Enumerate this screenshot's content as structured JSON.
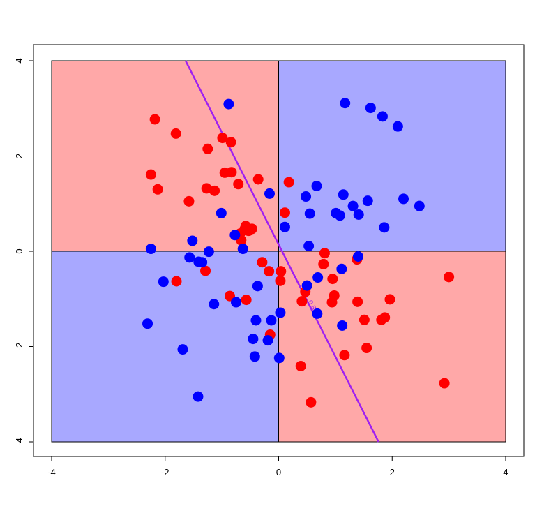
{
  "chart_data": {
    "type": "scatter",
    "title": "",
    "xlabel": "",
    "ylabel": "",
    "xlim": [
      -4,
      4
    ],
    "ylim": [
      -4,
      4
    ],
    "x_ticks": [
      -4,
      -2,
      0,
      2,
      4
    ],
    "y_ticks": [
      -4,
      -2,
      0,
      2,
      4
    ],
    "x_tick_labels": [
      "-4",
      "-2",
      "0",
      "2",
      "4"
    ],
    "y_tick_labels": [
      "-4",
      "-2",
      "0",
      "2",
      "4"
    ],
    "grid": false,
    "legend": "none",
    "background_regions": [
      {
        "x": [
          -4,
          0
        ],
        "y": [
          0,
          4
        ],
        "color": "#ffa8a8"
      },
      {
        "x": [
          0,
          4
        ],
        "y": [
          0,
          4
        ],
        "color": "#a8a8ff"
      },
      {
        "x": [
          -4,
          0
        ],
        "y": [
          -4,
          0
        ],
        "color": "#a8a8ff"
      },
      {
        "x": [
          0,
          4
        ],
        "y": [
          -4,
          0
        ],
        "color": "#ffa8a8"
      }
    ],
    "region_border_color": "#000000",
    "boundary_line": {
      "label": "0.5",
      "color": "#a020f0",
      "points": [
        [
          -1.64,
          4.0
        ],
        [
          1.76,
          -4.0
        ]
      ],
      "label_at": [
        0.55,
        -1.15
      ]
    },
    "series": [
      {
        "color": "#ff0000",
        "points": [
          [
            -2.18,
            2.77
          ],
          [
            -1.81,
            2.47
          ],
          [
            -1.25,
            2.15
          ],
          [
            -0.99,
            2.38
          ],
          [
            -0.84,
            2.29
          ],
          [
            -2.25,
            1.61
          ],
          [
            -2.13,
            1.3
          ],
          [
            -1.58,
            1.05
          ],
          [
            -1.27,
            1.32
          ],
          [
            -1.13,
            1.27
          ],
          [
            -0.95,
            1.65
          ],
          [
            -0.83,
            1.66
          ],
          [
            -0.71,
            1.41
          ],
          [
            -0.36,
            1.51
          ],
          [
            0.11,
            0.81
          ],
          [
            0.18,
            1.45
          ],
          [
            -0.58,
            0.53
          ],
          [
            -0.47,
            0.47
          ],
          [
            -0.6,
            0.46
          ],
          [
            -0.68,
            0.37
          ],
          [
            -0.66,
            0.23
          ],
          [
            -1.8,
            -0.63
          ],
          [
            -1.29,
            -0.41
          ],
          [
            -0.86,
            -0.94
          ],
          [
            -0.57,
            -1.02
          ],
          [
            -0.29,
            -0.23
          ],
          [
            -0.17,
            -0.42
          ],
          [
            0.04,
            -0.42
          ],
          [
            0.03,
            -0.62
          ],
          [
            -0.53,
            0.43
          ],
          [
            0.41,
            -1.05
          ],
          [
            0.47,
            -0.85
          ],
          [
            0.81,
            -0.04
          ],
          [
            0.79,
            -0.27
          ],
          [
            0.95,
            -0.58
          ],
          [
            0.98,
            -0.93
          ],
          [
            0.94,
            -1.07
          ],
          [
            1.38,
            -0.17
          ],
          [
            1.39,
            -1.06
          ],
          [
            1.51,
            -1.44
          ],
          [
            1.81,
            -1.44
          ],
          [
            1.87,
            -1.39
          ],
          [
            1.96,
            -1.01
          ],
          [
            1.55,
            -2.03
          ],
          [
            1.16,
            -2.18
          ],
          [
            0.39,
            -2.41
          ],
          [
            0.57,
            -3.17
          ],
          [
            -0.15,
            -1.75
          ],
          [
            2.92,
            -2.77
          ],
          [
            3.0,
            -0.54
          ]
        ]
      },
      {
        "color": "#0000ff",
        "points": [
          [
            -0.88,
            3.09
          ],
          [
            1.17,
            3.11
          ],
          [
            1.62,
            3.01
          ],
          [
            1.83,
            2.83
          ],
          [
            2.1,
            2.62
          ],
          [
            -0.16,
            1.21
          ],
          [
            0.67,
            1.37
          ],
          [
            0.48,
            1.15
          ],
          [
            1.14,
            1.19
          ],
          [
            1.31,
            0.95
          ],
          [
            1.57,
            1.06
          ],
          [
            2.2,
            1.1
          ],
          [
            2.48,
            0.95
          ],
          [
            1.01,
            0.8
          ],
          [
            1.08,
            0.75
          ],
          [
            1.41,
            0.77
          ],
          [
            1.86,
            0.5
          ],
          [
            0.55,
            0.79
          ],
          [
            0.11,
            0.51
          ],
          [
            -1.01,
            0.8
          ],
          [
            -0.77,
            0.34
          ],
          [
            -1.52,
            0.22
          ],
          [
            -2.25,
            0.05
          ],
          [
            -1.23,
            -0.01
          ],
          [
            -0.63,
            0.05
          ],
          [
            -1.57,
            -0.13
          ],
          [
            -1.41,
            -0.22
          ],
          [
            -1.35,
            -0.23
          ],
          [
            -2.03,
            -0.64
          ],
          [
            -1.14,
            -1.11
          ],
          [
            -0.75,
            -1.07
          ],
          [
            -0.37,
            -0.73
          ],
          [
            0.53,
            0.11
          ],
          [
            0.5,
            -0.72
          ],
          [
            0.69,
            -0.55
          ],
          [
            1.4,
            -0.11
          ],
          [
            1.11,
            -0.37
          ],
          [
            -0.4,
            -1.45
          ],
          [
            -0.13,
            -1.45
          ],
          [
            0.03,
            -1.29
          ],
          [
            -0.45,
            -1.84
          ],
          [
            -0.19,
            -1.87
          ],
          [
            0.01,
            -2.24
          ],
          [
            -0.42,
            -2.21
          ],
          [
            0.68,
            -1.31
          ],
          [
            1.12,
            -1.56
          ],
          [
            -2.31,
            -1.52
          ],
          [
            -1.69,
            -2.06
          ],
          [
            -1.42,
            -3.05
          ]
        ]
      }
    ]
  }
}
